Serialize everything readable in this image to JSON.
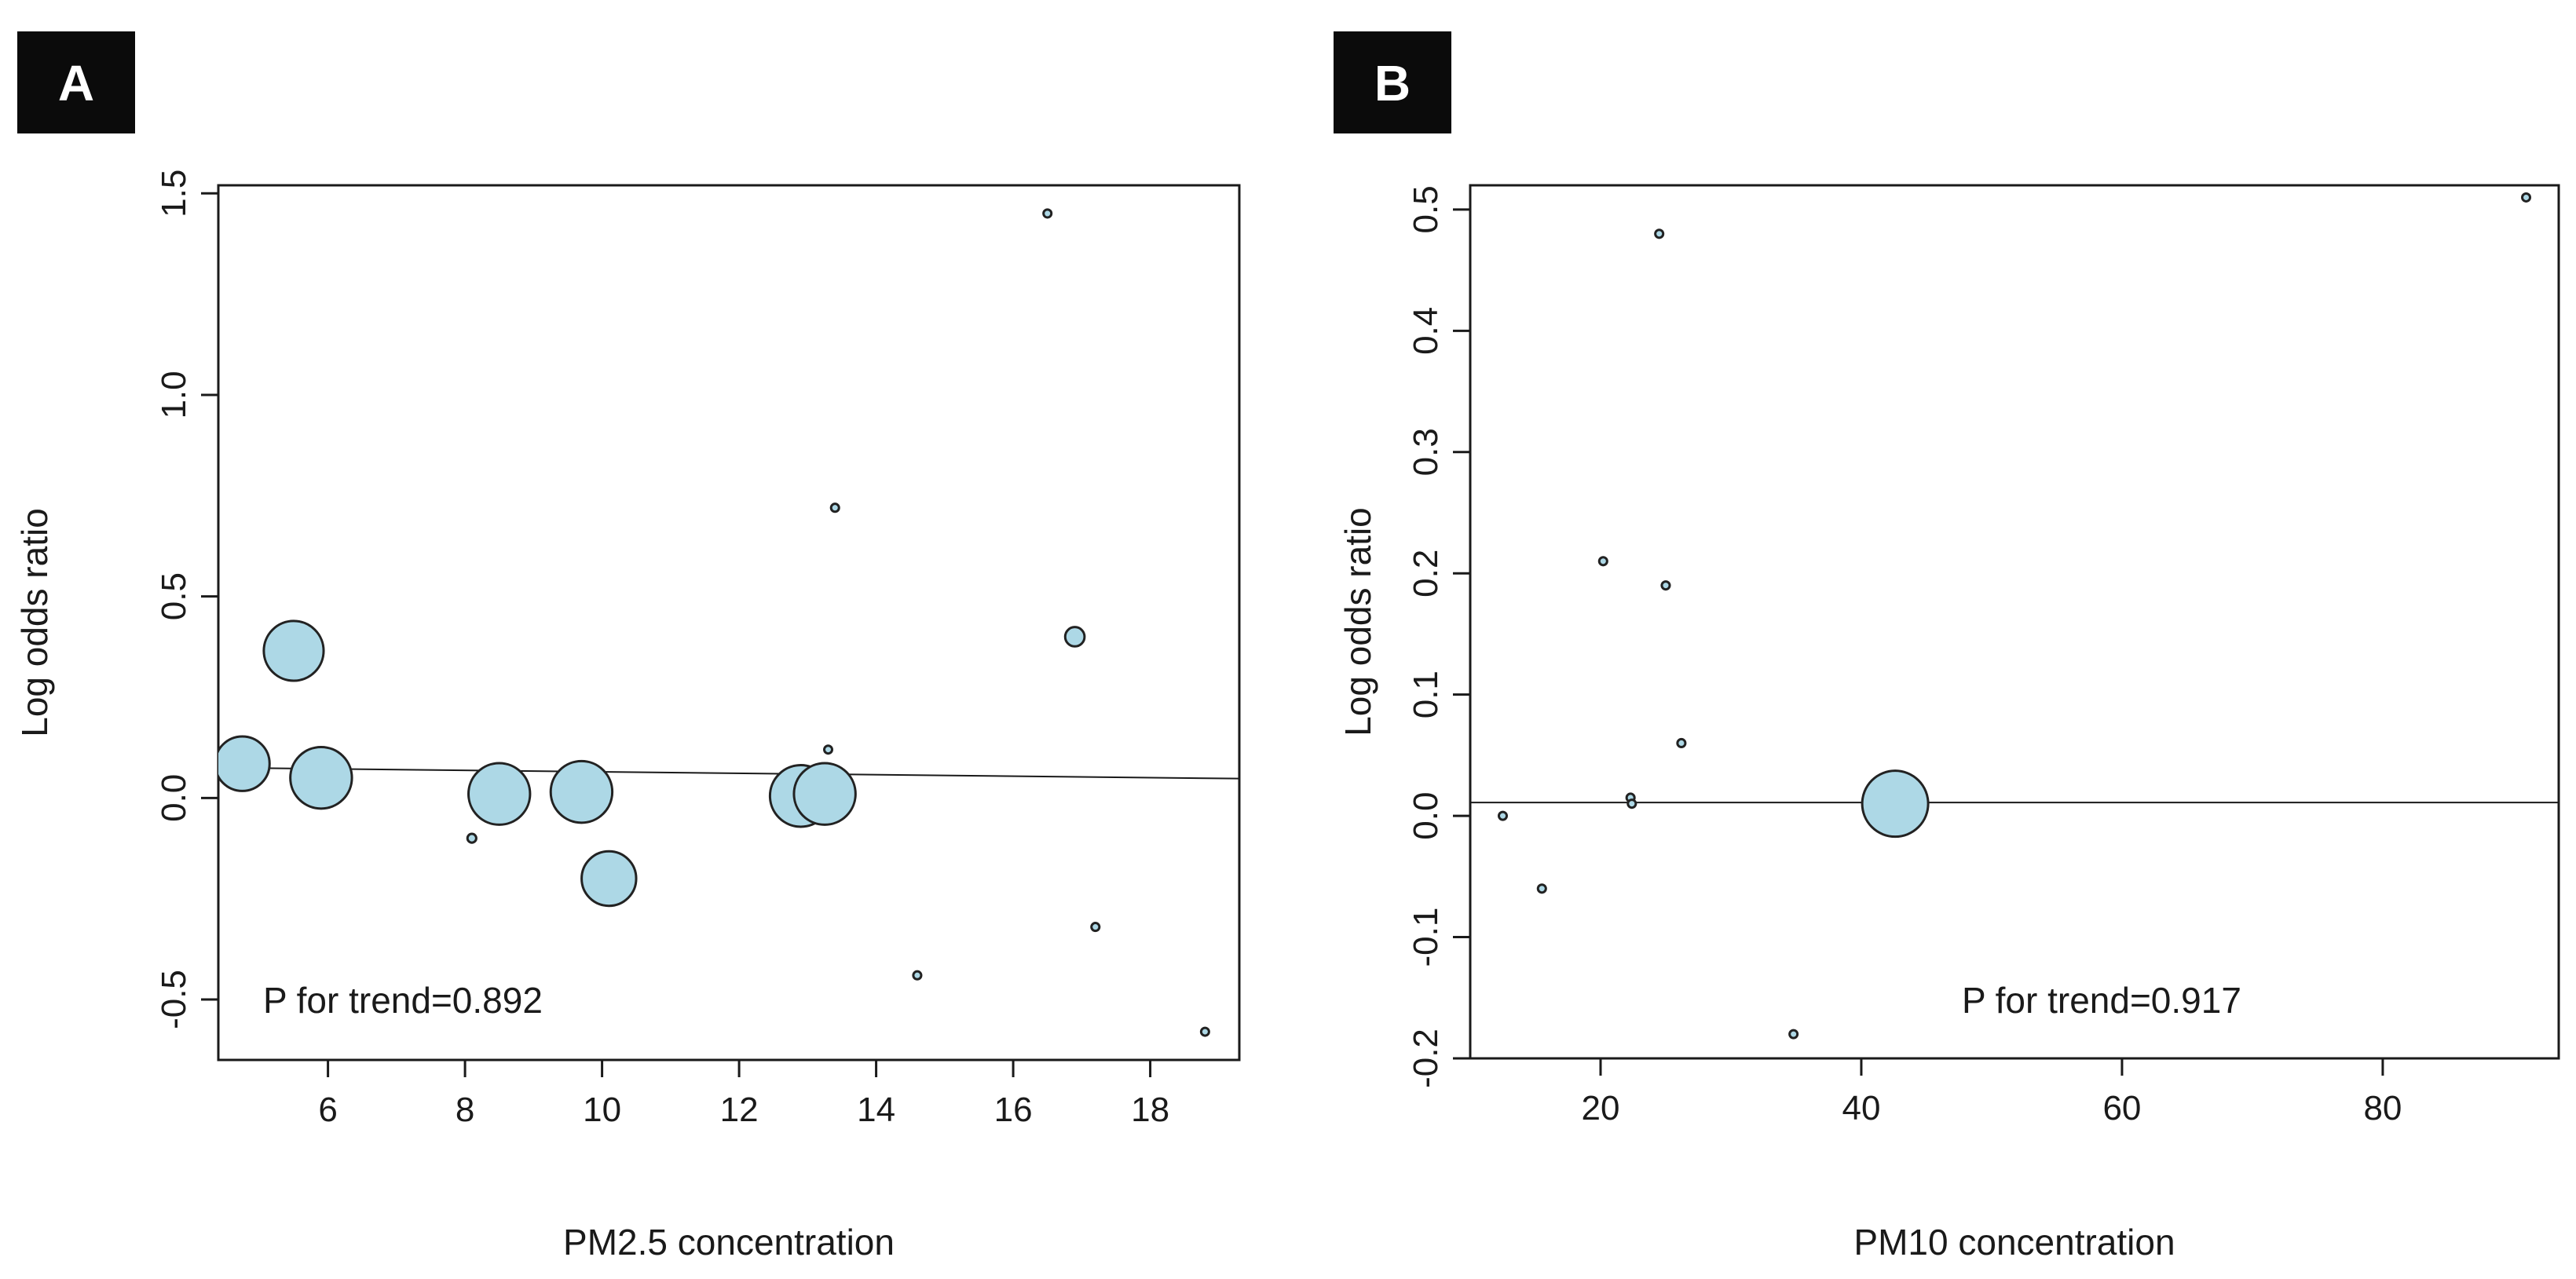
{
  "colors": {
    "bubble_fill": "#add8e6",
    "ink": "#1a1a1a"
  },
  "chart_data": [
    {
      "panel_label": "A",
      "type": "scatter",
      "xlabel": "PM2.5 concentration",
      "ylabel": "Log odds ratio",
      "annotation": "P for trend=0.892",
      "xlim": [
        4.4,
        19.3
      ],
      "ylim": [
        -0.65,
        1.52
      ],
      "xticks": [
        6,
        8,
        10,
        12,
        14,
        16,
        18
      ],
      "xtick_labels": [
        "6",
        "8",
        "10",
        "12",
        "14",
        "16",
        "18"
      ],
      "yticks": [
        -0.5,
        0.0,
        0.5,
        1.0,
        1.5
      ],
      "ytick_labels": [
        "-0.5",
        "0.0",
        "0.5",
        "1.0",
        "1.5"
      ],
      "trend_line": {
        "x": [
          4.4,
          19.3
        ],
        "y": [
          0.075,
          0.048
        ]
      },
      "points": [
        {
          "x": 4.75,
          "y": 0.085,
          "size": 0.62
        },
        {
          "x": 5.5,
          "y": 0.365,
          "size": 0.68
        },
        {
          "x": 5.9,
          "y": 0.05,
          "size": 0.7
        },
        {
          "x": 8.1,
          "y": -0.1,
          "size": 0.1
        },
        {
          "x": 8.5,
          "y": 0.01,
          "size": 0.7
        },
        {
          "x": 9.7,
          "y": 0.015,
          "size": 0.7
        },
        {
          "x": 10.1,
          "y": -0.2,
          "size": 0.62
        },
        {
          "x": 12.9,
          "y": 0.005,
          "size": 0.7
        },
        {
          "x": 13.25,
          "y": 0.01,
          "size": 0.7
        },
        {
          "x": 13.3,
          "y": 0.12,
          "size": 0.08
        },
        {
          "x": 13.4,
          "y": 0.72,
          "size": 0.09
        },
        {
          "x": 14.6,
          "y": -0.44,
          "size": 0.09
        },
        {
          "x": 16.5,
          "y": 1.45,
          "size": 0.09
        },
        {
          "x": 16.9,
          "y": 0.4,
          "size": 0.22
        },
        {
          "x": 17.2,
          "y": -0.32,
          "size": 0.09
        },
        {
          "x": 18.8,
          "y": -0.58,
          "size": 0.08
        }
      ]
    },
    {
      "panel_label": "B",
      "type": "scatter",
      "xlabel": "PM10 concentration",
      "ylabel": "Log odds ratio",
      "annotation": "P for trend=0.917",
      "xlim": [
        10,
        93.5
      ],
      "ylim": [
        -0.2,
        0.52
      ],
      "xticks": [
        20,
        40,
        60,
        80
      ],
      "xtick_labels": [
        "20",
        "40",
        "60",
        "80"
      ],
      "yticks": [
        -0.2,
        -0.1,
        0.0,
        0.1,
        0.2,
        0.3,
        0.4,
        0.5
      ],
      "ytick_labels": [
        "-0.2",
        "-0.1",
        "0.0",
        "0.1",
        "0.2",
        "0.3",
        "0.4",
        "0.5"
      ],
      "trend_line": {
        "x": [
          10,
          93.5
        ],
        "y": [
          0.011,
          0.011
        ]
      },
      "points": [
        {
          "x": 12.5,
          "y": 0.0,
          "size": 0.08
        },
        {
          "x": 15.5,
          "y": -0.06,
          "size": 0.09
        },
        {
          "x": 20.2,
          "y": 0.21,
          "size": 0.09
        },
        {
          "x": 22.3,
          "y": 0.015,
          "size": 0.09
        },
        {
          "x": 22.4,
          "y": 0.01,
          "size": 0.09
        },
        {
          "x": 24.5,
          "y": 0.48,
          "size": 0.09
        },
        {
          "x": 25.0,
          "y": 0.19,
          "size": 0.09
        },
        {
          "x": 26.2,
          "y": 0.06,
          "size": 0.09
        },
        {
          "x": 34.8,
          "y": -0.18,
          "size": 0.08
        },
        {
          "x": 42.6,
          "y": 0.01,
          "size": 0.75
        },
        {
          "x": 91.0,
          "y": 0.51,
          "size": 0.08
        }
      ]
    }
  ]
}
